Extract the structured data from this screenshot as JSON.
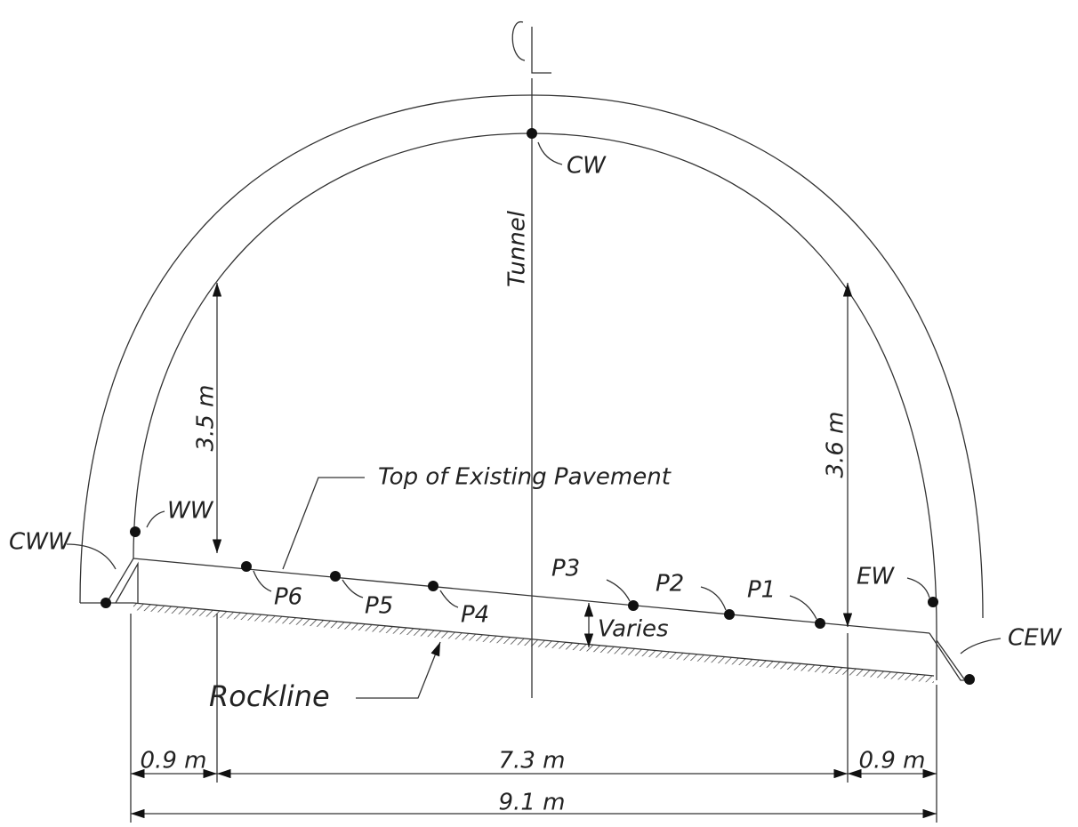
{
  "centerline_label": "Tunnel",
  "points": [
    {
      "label": "CW"
    },
    {
      "label": "WW"
    },
    {
      "label": "CWW"
    },
    {
      "label": "P6"
    },
    {
      "label": "P5"
    },
    {
      "label": "P4"
    },
    {
      "label": "P3"
    },
    {
      "label": "P2"
    },
    {
      "label": "P1"
    },
    {
      "label": "EW"
    },
    {
      "label": "CEW"
    }
  ],
  "annotations": {
    "pavement": "Top of Existing Pavement",
    "rock": "Rockline",
    "varies": "Varies"
  },
  "dimensions": {
    "left_height": "3.5 m",
    "right_height": "3.6 m",
    "left_offset": "0.9 m",
    "middle_width": "7.3 m",
    "right_offset": "0.9 m",
    "total_width": "9.1 m"
  }
}
